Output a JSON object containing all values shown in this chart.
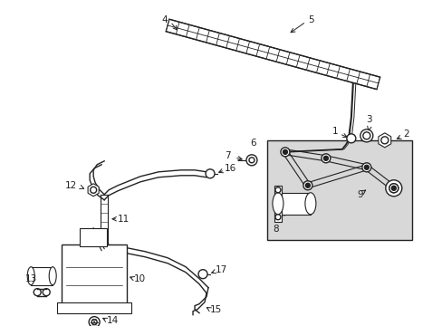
{
  "background_color": "#ffffff",
  "fig_width": 4.89,
  "fig_height": 3.6,
  "dpi": 100,
  "line_color": "#222222",
  "gray_fill": "#d8d8d8",
  "label_fontsize": 7.5
}
